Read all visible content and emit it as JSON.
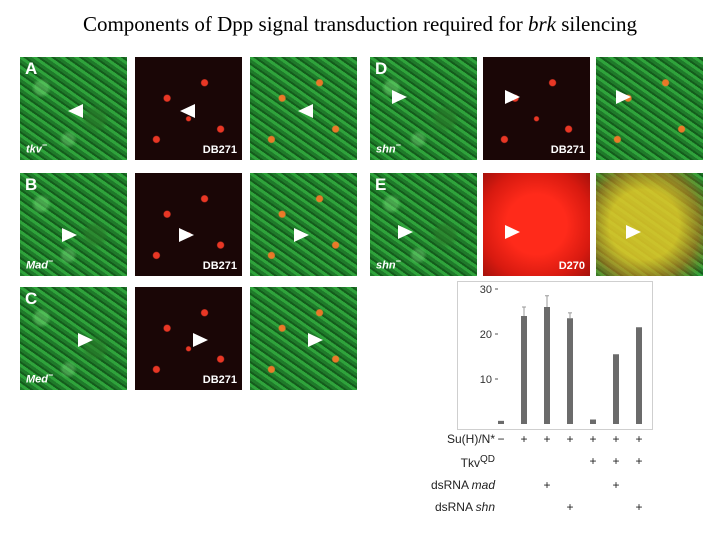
{
  "title": {
    "prefix": "Components of Dpp signal transduction required for ",
    "gene": "brk",
    "suffix": " silencing"
  },
  "panels": {
    "A": {
      "letter": "A",
      "genotype": "tkv",
      "marker": "DB271"
    },
    "B": {
      "letter": "B",
      "genotype": "Mad",
      "marker": "DB271"
    },
    "C": {
      "letter": "C",
      "genotype": "Med",
      "marker": "DB271"
    },
    "D": {
      "letter": "D",
      "genotype": "shn",
      "marker": "DB271"
    },
    "E": {
      "letter": "E",
      "genotype": "shn",
      "marker": "D270"
    },
    "superscript": "−"
  },
  "chart_data": {
    "type": "bar",
    "categories": [
      "1",
      "2",
      "3",
      "4",
      "5",
      "6",
      "7"
    ],
    "values": [
      0.7,
      24,
      26,
      23.5,
      1,
      15.5,
      21.5
    ],
    "errors": [
      0,
      2,
      2.5,
      1.2,
      0,
      0,
      0
    ],
    "ylim": [
      0,
      30
    ],
    "yticks": [
      10,
      20,
      30
    ],
    "bar_color": "#6b6b6b",
    "rows": [
      {
        "label": "Su(H)/N*",
        "italic": "",
        "marks": [
          "−",
          "+",
          "+",
          "+",
          "+",
          "+",
          "+"
        ]
      },
      {
        "label": "Tkv",
        "italic": "",
        "sup": "QD",
        "marks": [
          "",
          "",
          "",
          "",
          "+",
          "+",
          "+"
        ]
      },
      {
        "label": "dsRNA ",
        "italic": "mad",
        "marks": [
          "",
          "",
          "+",
          "",
          "",
          "+",
          ""
        ]
      },
      {
        "label": "dsRNA ",
        "italic": "shn",
        "marks": [
          "",
          "",
          "",
          "+",
          "",
          "",
          "+"
        ]
      }
    ]
  }
}
